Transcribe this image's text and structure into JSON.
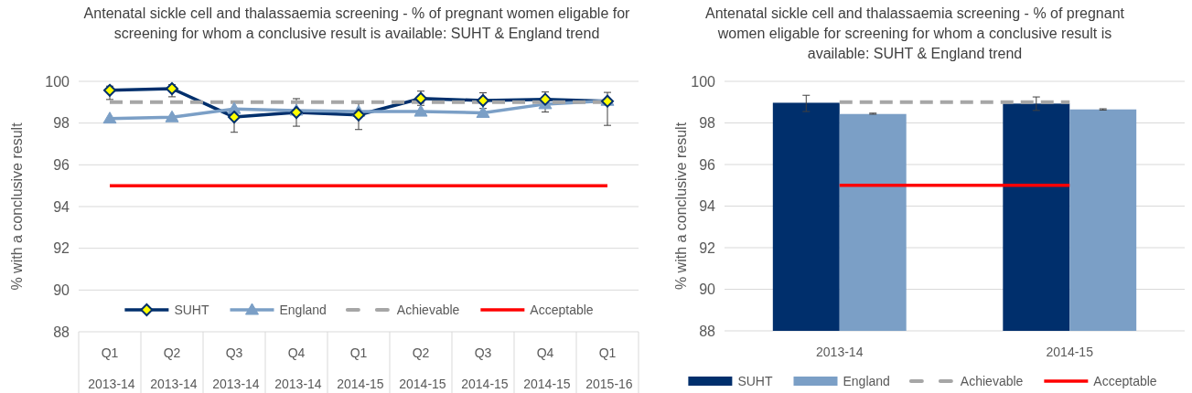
{
  "chart_data": [
    {
      "type": "line",
      "title": "Antenatal sickle cell and thalassaemia screening - % of pregnant women eligable for screening for whom a conclusive result is available: SUHT & England trend",
      "ylabel": "% with a conclusive result",
      "categories": [
        "Q1 2013-14",
        "Q2 2013-14",
        "Q3 2013-14",
        "Q4 2013-14",
        "Q1 2014-15",
        "Q2 2014-15",
        "Q3 2014-15",
        "Q4 2014-15",
        "Q1 2015-16"
      ],
      "series": [
        {
          "name": "SUHT",
          "color": "#002f6c",
          "marker": "diamond",
          "values": [
            99.57,
            99.65,
            98.29,
            98.51,
            98.39,
            99.18,
            99.08,
            99.14,
            99.05
          ],
          "errors": [
            [
              99.13,
              99.77
            ],
            [
              99.26,
              99.84
            ],
            [
              97.56,
              98.97
            ],
            [
              97.85,
              99.17
            ],
            [
              97.69,
              98.95
            ],
            [
              98.85,
              99.53
            ],
            [
              98.7,
              99.45
            ],
            [
              98.53,
              99.49
            ],
            [
              97.89,
              99.47
            ]
          ]
        },
        {
          "name": "England",
          "color": "#7b9fc6",
          "marker": "triangle",
          "values": [
            98.22,
            98.28,
            98.68,
            98.6,
            98.55,
            98.55,
            98.49,
            98.91,
            99.07
          ]
        },
        {
          "name": "Achievable",
          "color": "#a6a6a6",
          "line_style": "dashed",
          "values": [
            99,
            99,
            99,
            99,
            99,
            99,
            99,
            99,
            99
          ]
        },
        {
          "name": "Acceptable",
          "color": "#ff0000",
          "values": [
            95,
            95,
            95,
            95,
            95,
            95,
            95,
            95,
            95
          ]
        }
      ],
      "ylim": [
        88,
        100
      ],
      "yticks": [
        88,
        90,
        92,
        94,
        96,
        98,
        100
      ],
      "grid": "y",
      "legend": "bottom"
    },
    {
      "type": "bar",
      "title": "Antenatal sickle cell and thalassaemia screening - % of pregnant women eligable for screening for whom a conclusive result is available: SUHT & England trend",
      "ylabel": "% with a conclusive result",
      "categories": [
        "2013-14",
        "2014-15"
      ],
      "series": [
        {
          "name": "SUHT",
          "color": "#002f6c",
          "values": [
            98.97,
            98.93
          ],
          "errors": [
            [
              98.55,
              99.33
            ],
            [
              98.6,
              99.25
            ]
          ]
        },
        {
          "name": "England",
          "color": "#7b9fc6",
          "values": [
            98.43,
            98.65
          ],
          "errors": [
            [
              98.42,
              98.47
            ],
            [
              98.62,
              98.68
            ]
          ]
        },
        {
          "name": "Achievable",
          "type": "line",
          "color": "#a6a6a6",
          "line_style": "dashed",
          "values": [
            99,
            99
          ]
        },
        {
          "name": "Acceptable",
          "type": "line",
          "color": "#ff0000",
          "values": [
            95,
            95
          ]
        }
      ],
      "ylim": [
        88,
        100
      ],
      "yticks": [
        88,
        90,
        92,
        94,
        96,
        98,
        100
      ],
      "grid": "y",
      "legend": "bottom"
    }
  ]
}
